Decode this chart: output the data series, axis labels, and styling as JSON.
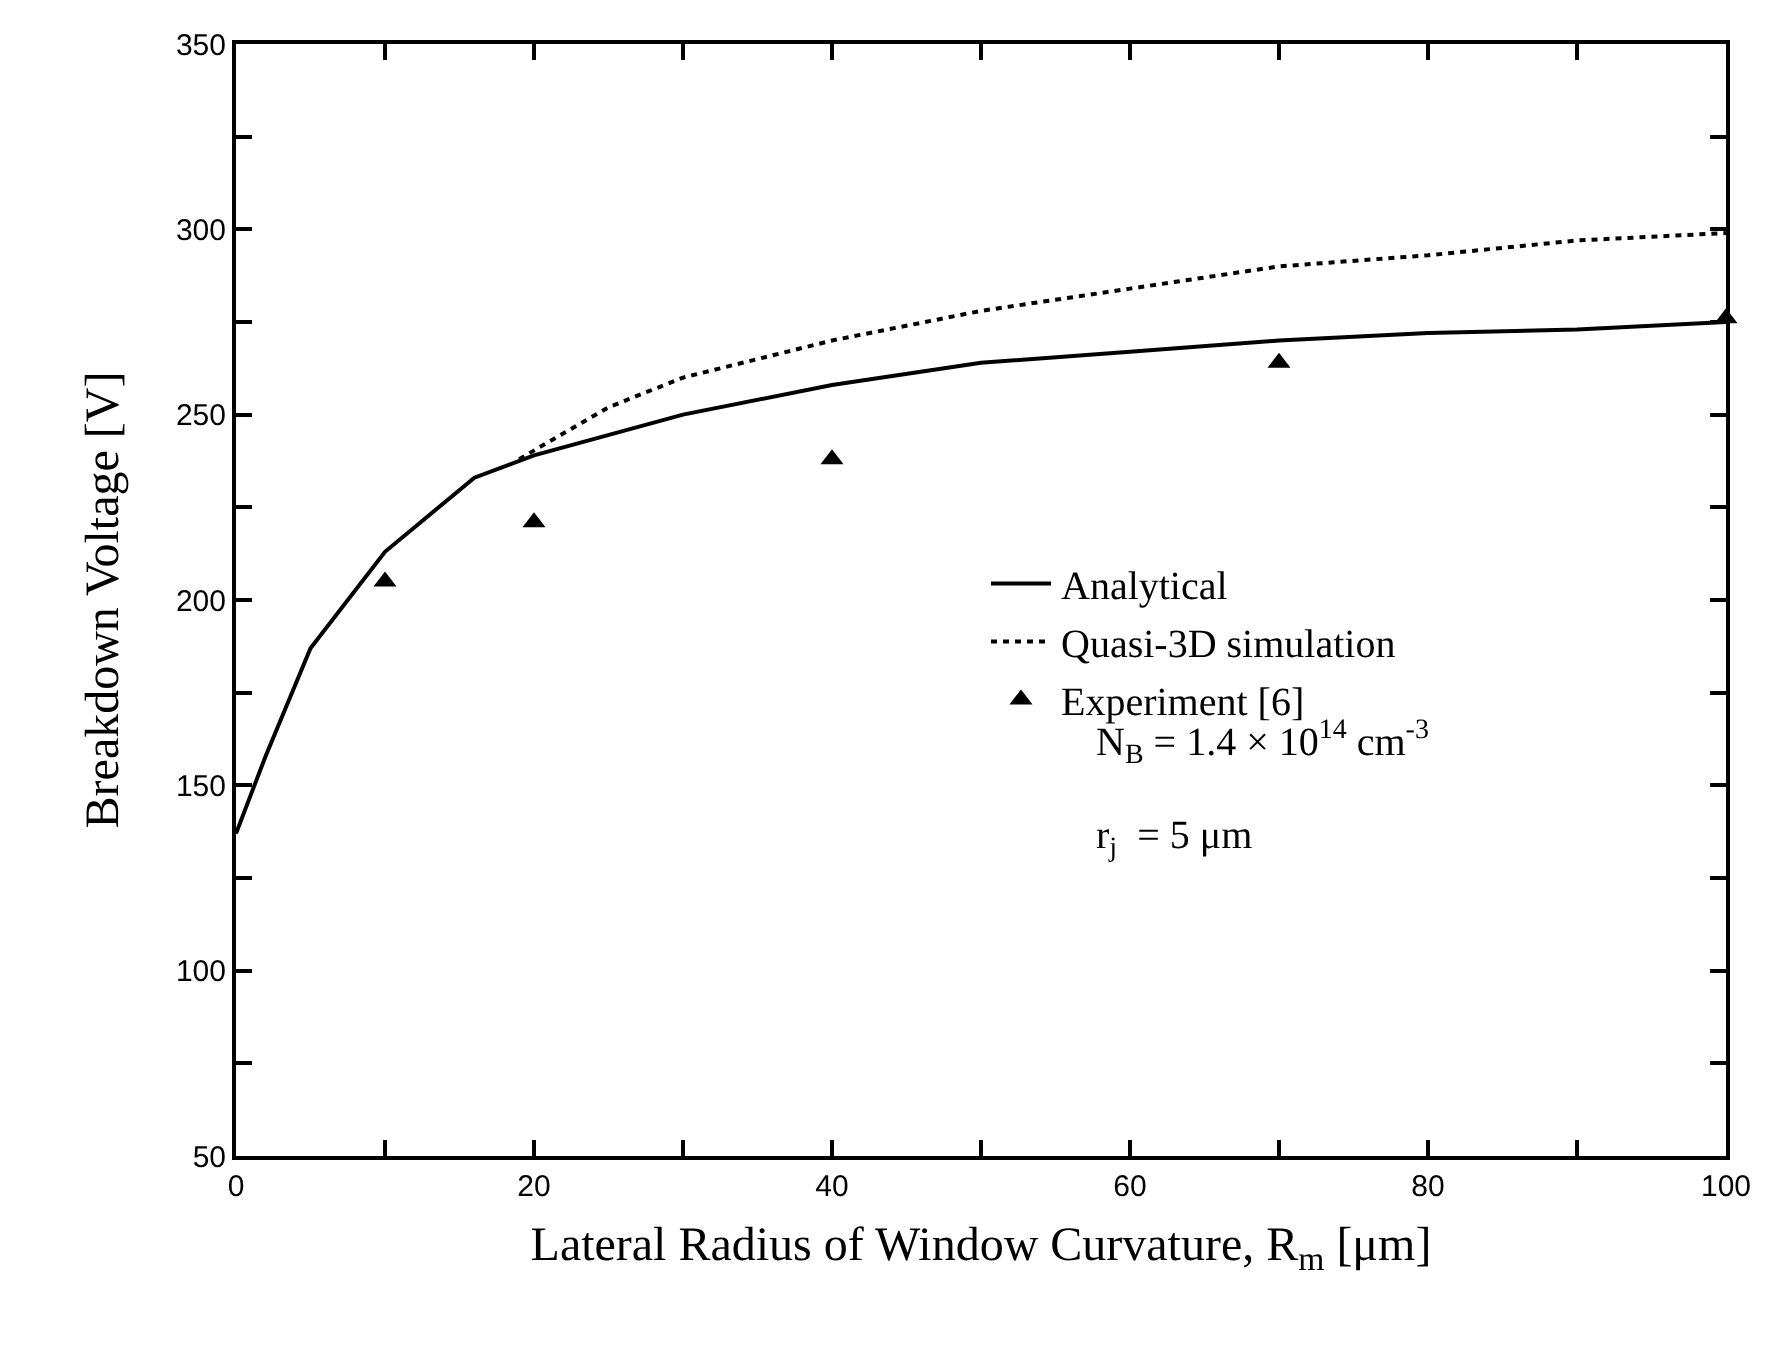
{
  "chart_data": {
    "type": "line",
    "xlabel": "Lateral Radius of Window Curvature, R$_{m}$ [μm]",
    "ylabel": "Breakdown Voltage [V]",
    "xlim": [
      0,
      100
    ],
    "ylim": [
      50,
      350
    ],
    "xticks": [
      0,
      {
        "value": 10,
        "label": null
      },
      20,
      {
        "value": 30,
        "label": null
      },
      40,
      {
        "value": 50,
        "label": null
      },
      60,
      {
        "value": 70,
        "label": null
      },
      80,
      {
        "value": 90,
        "label": null
      },
      100
    ],
    "yticks": [
      50,
      {
        "value": 75,
        "label": null
      },
      100,
      {
        "value": 125,
        "label": null
      },
      150,
      {
        "value": 175,
        "label": null
      },
      200,
      {
        "value": 225,
        "label": null
      },
      250,
      {
        "value": 275,
        "label": null
      },
      300,
      {
        "value": 325,
        "label": null
      },
      350
    ],
    "grid": false,
    "legend": "right",
    "series": [
      {
        "name": "Analytical",
        "line_style": "solid",
        "marker": "none",
        "color": "#000000",
        "x": [
          0,
          2,
          5,
          10,
          16,
          20,
          30,
          40,
          50,
          60,
          70,
          80,
          90,
          100
        ],
        "values": [
          137,
          158,
          187,
          213,
          233,
          239,
          250,
          258,
          264,
          267,
          270,
          272,
          273,
          275
        ]
      },
      {
        "name": "Quasi-3D simulation",
        "type": "line",
        "line_style": "dotted",
        "marker": "none",
        "color": "#000000",
        "x": [
          19,
          25,
          30,
          40,
          50,
          60,
          70,
          80,
          90,
          100
        ],
        "values": [
          238,
          252,
          260,
          270,
          278,
          284,
          290,
          293,
          297,
          299
        ]
      },
      {
        "name": "Experiment [6]",
        "type": "scatter",
        "marker": "triangle",
        "color": "#000000",
        "x": [
          10,
          20,
          40,
          70,
          100
        ],
        "values": [
          205,
          221,
          238,
          264,
          276
        ]
      }
    ],
    "annotations": [
      "N$_{B}$ = 1.4 × 10$^{14}$ cm$^{-3}$",
      "r$_{j}$  = 5 μm"
    ]
  }
}
